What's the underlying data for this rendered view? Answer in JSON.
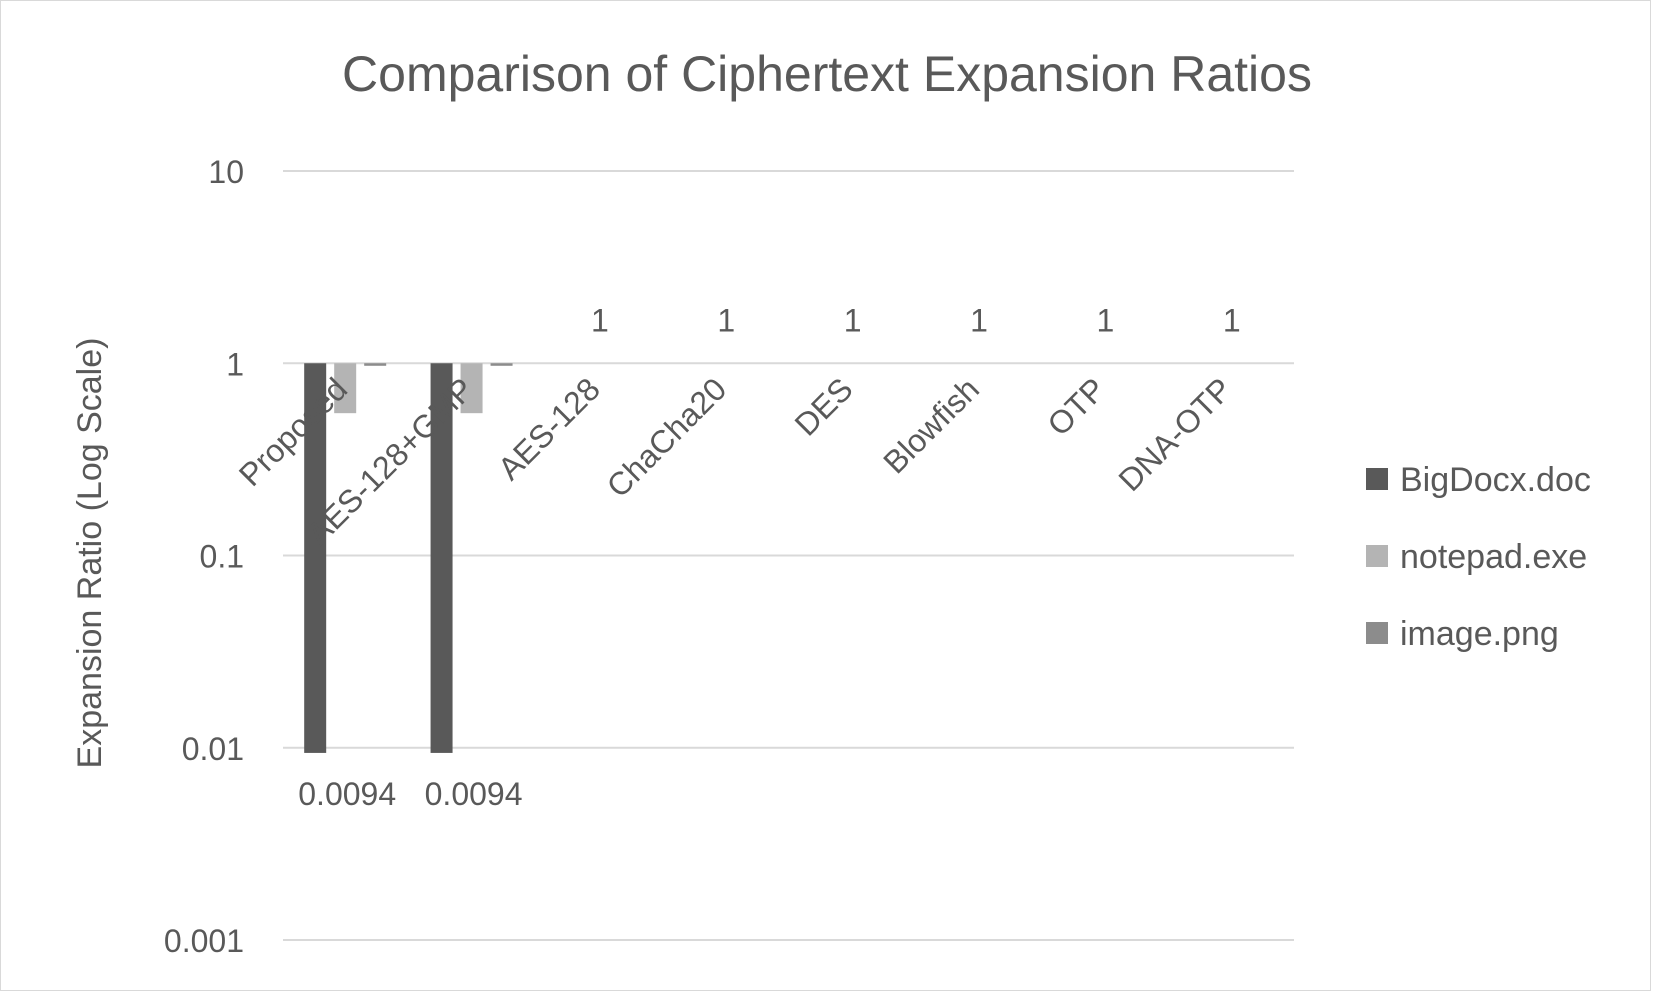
{
  "chart_data": {
    "type": "bar",
    "title": "Comparison of Ciphertext Expansion Ratios",
    "xlabel": "",
    "ylabel": "Expansion Ratio (Log Scale)",
    "yscale": "log",
    "ylim": [
      0.001,
      10
    ],
    "yticks": [
      {
        "value": 10,
        "label": "10"
      },
      {
        "value": 1,
        "label": "1"
      },
      {
        "value": 0.1,
        "label": "0.1"
      },
      {
        "value": 0.01,
        "label": "0.01"
      },
      {
        "value": 0.001,
        "label": "0.001"
      }
    ],
    "categories": [
      "Proposed",
      "AES-128+GMP",
      "AES-128",
      "ChaCha20",
      "DES",
      "Blowfish",
      "OTP",
      "DNA-OTP"
    ],
    "series": [
      {
        "name": "BigDocx.doc",
        "color": "#595959",
        "values": [
          0.0094,
          0.0094,
          1,
          1,
          1,
          1,
          1,
          1
        ],
        "labels": [
          "0.0094",
          "0.0094",
          "1",
          "1",
          "1",
          "1",
          "1",
          "1"
        ]
      },
      {
        "name": "notepad.exe",
        "color": "#b4b4b4",
        "values": [
          0.55,
          0.55,
          1,
          1,
          1,
          1,
          1,
          1
        ],
        "labels": []
      },
      {
        "name": "image.png",
        "color": "#8c8c8c",
        "values": [
          0.97,
          0.97,
          1,
          1,
          1,
          1,
          1,
          1
        ],
        "labels": []
      }
    ],
    "grid": true,
    "legend_position": "right",
    "colors": {
      "gridline": "#d9d9d9",
      "text": "#595959",
      "border": "#d9d9d9"
    }
  }
}
